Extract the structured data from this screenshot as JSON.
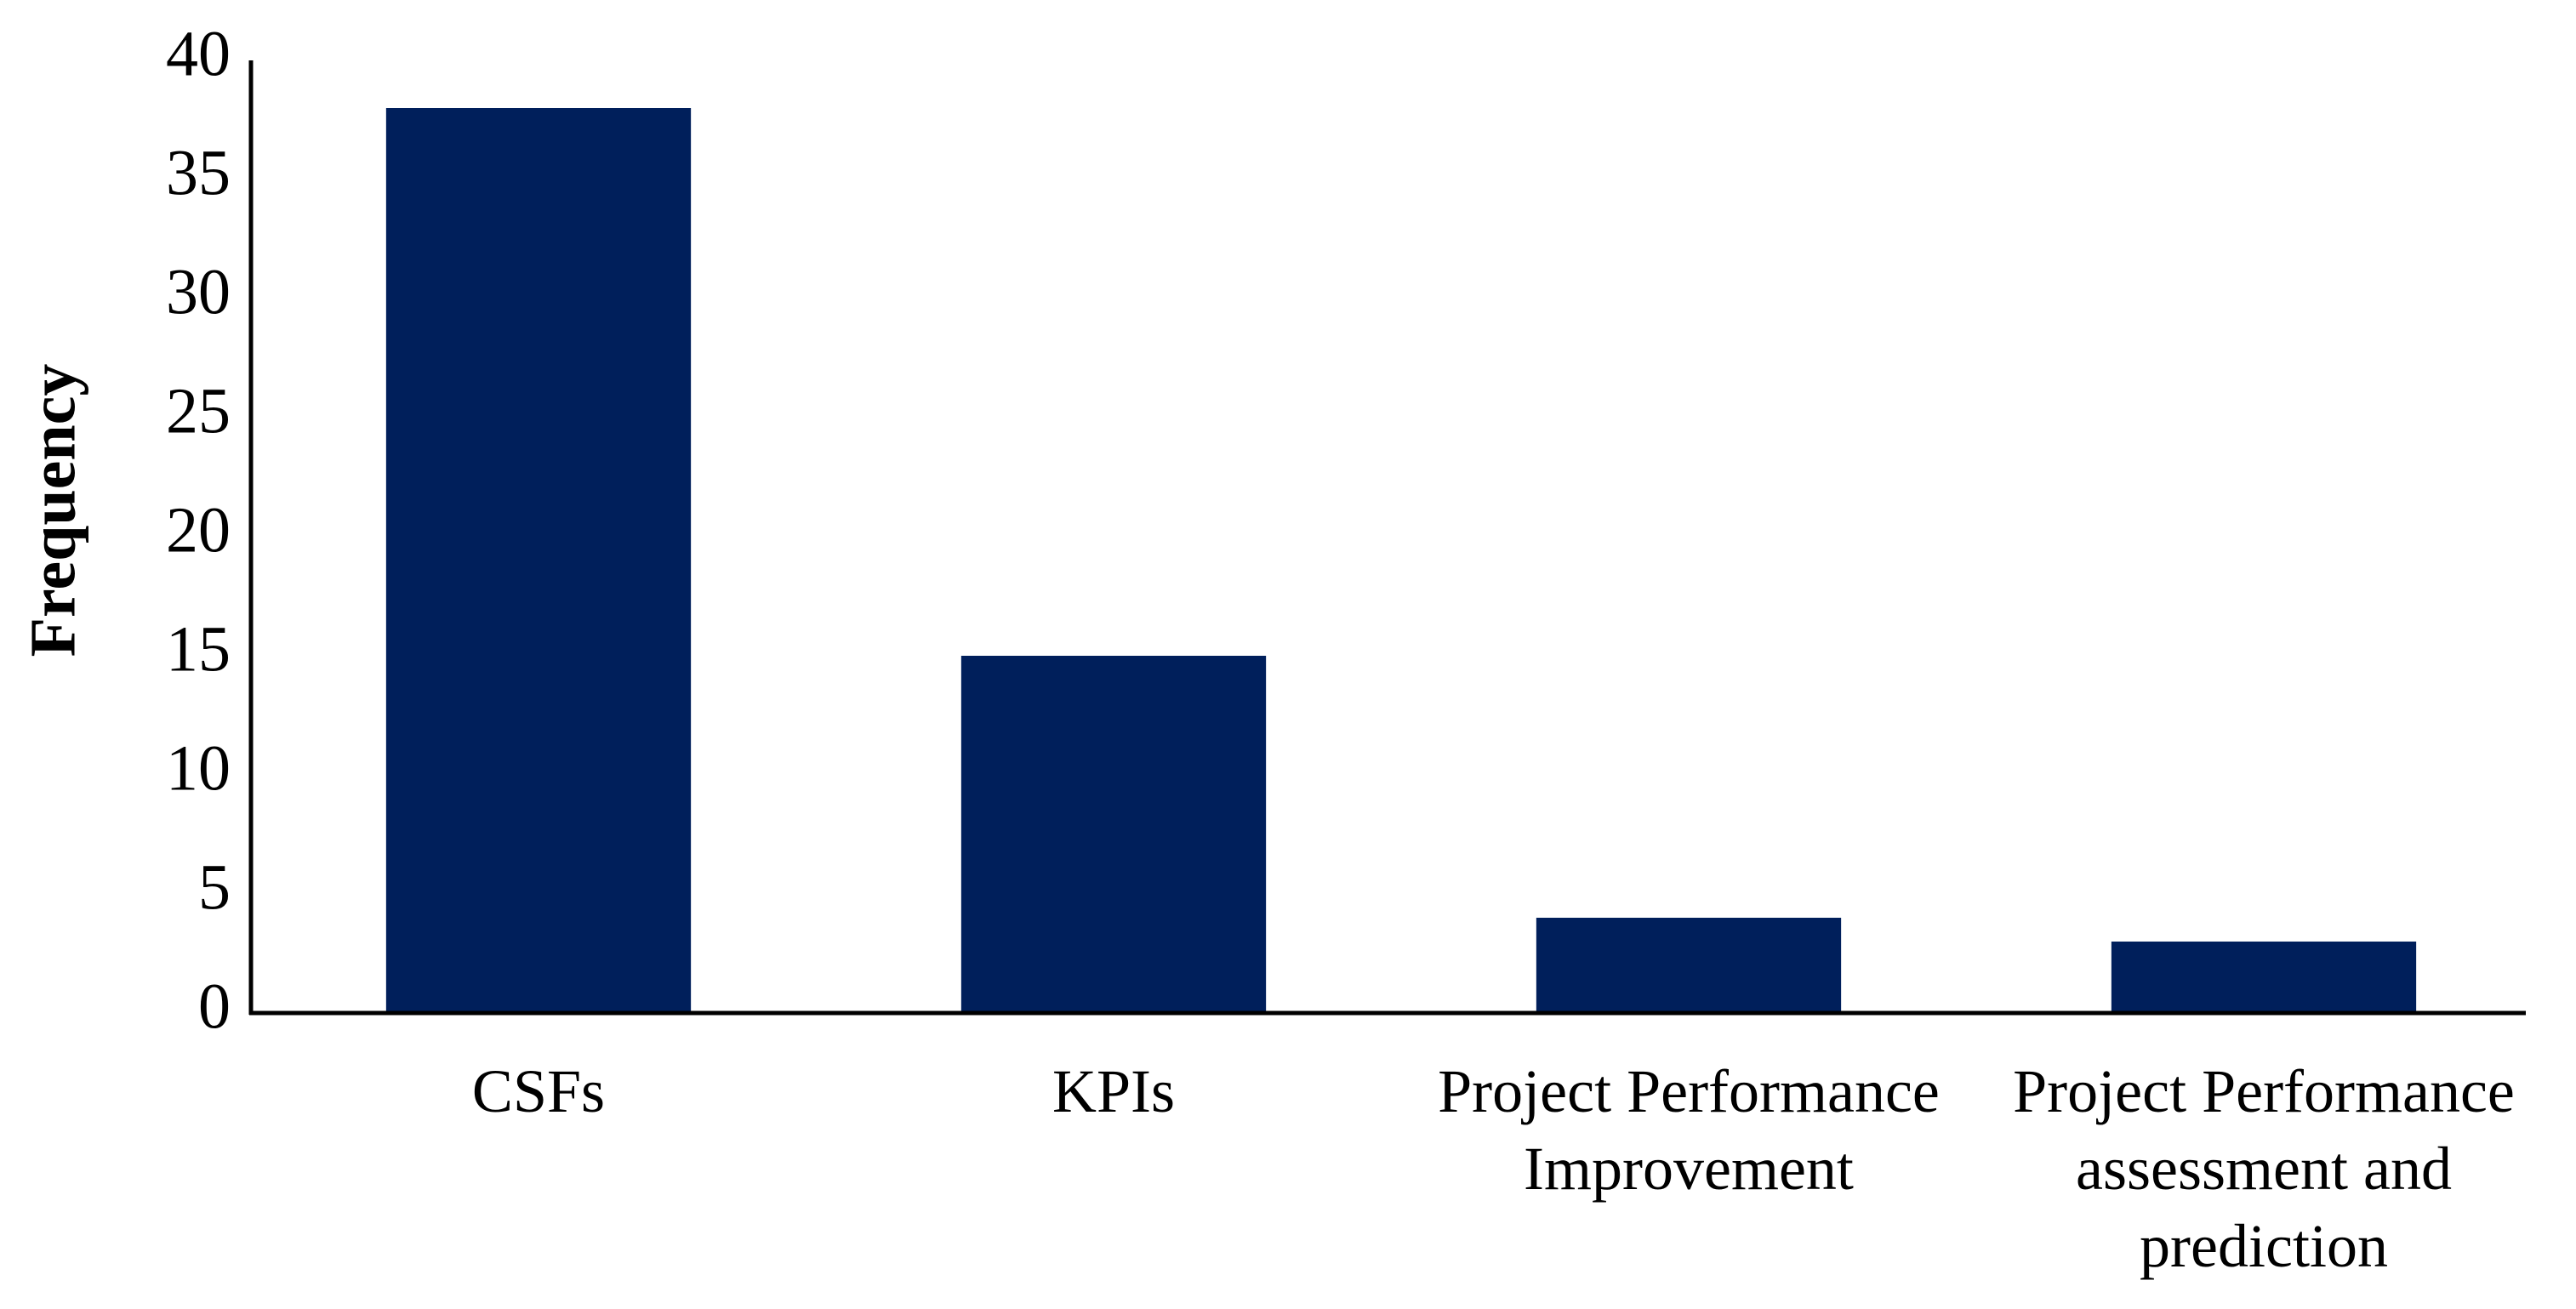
{
  "chart_data": {
    "type": "bar",
    "y_label": "Frequency",
    "categories": [
      "CSFs",
      "KPIs",
      "Project Performance Improvement",
      "Project Performance assessment and prediction"
    ],
    "values": [
      38,
      15,
      4,
      3
    ],
    "color": "#001f5b",
    "ylim": [
      0,
      40
    ],
    "yticks": [
      0,
      5,
      10,
      15,
      20,
      25,
      30,
      35,
      40
    ],
    "grid": false
  }
}
